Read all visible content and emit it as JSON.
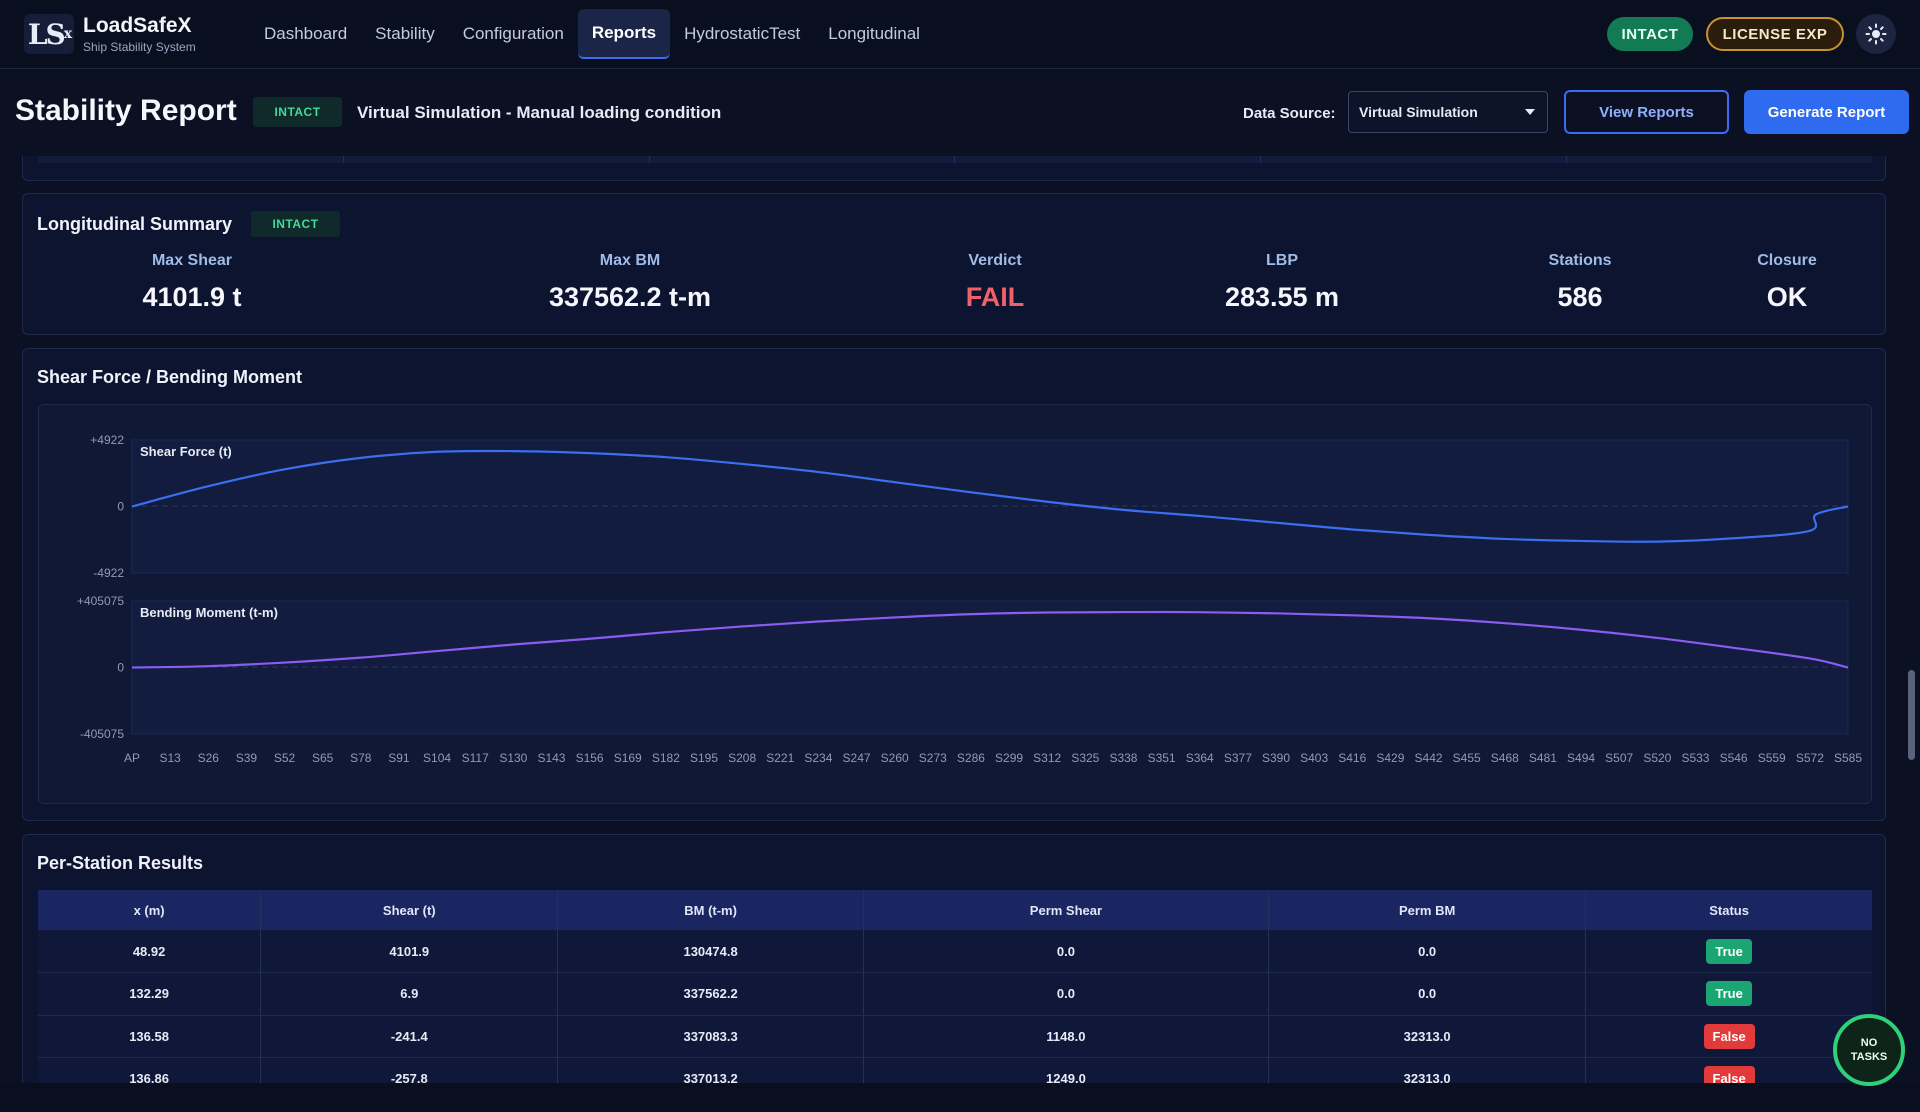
{
  "app": {
    "logo_text": "LS",
    "logo_sub": "x",
    "name": "LoadSafeX",
    "subtitle": "Ship Stability System"
  },
  "nav": [
    "Dashboard",
    "Stability",
    "Configuration",
    "Reports",
    "HydrostaticTest",
    "Longitudinal"
  ],
  "nav_active": "Reports",
  "top_status": {
    "intact": "INTACT",
    "license": "LICENSE EXP",
    "theme_icon": "sun-icon"
  },
  "header": {
    "title": "Stability Report",
    "badge": "INTACT",
    "description": "Virtual Simulation - Manual loading condition",
    "data_source_label": "Data Source:",
    "data_source_value": "Virtual Simulation",
    "view_reports": "View Reports",
    "generate_report": "Generate Report"
  },
  "summary": {
    "title": "Longitudinal Summary",
    "badge": "INTACT",
    "metrics": [
      {
        "label": "Max Shear",
        "value": "4101.9 t"
      },
      {
        "label": "Max BM",
        "value": "337562.2 t-m"
      },
      {
        "label": "Verdict",
        "value": "FAIL",
        "status": "fail"
      },
      {
        "label": "LBP",
        "value": "283.55 m"
      },
      {
        "label": "Stations",
        "value": "586"
      },
      {
        "label": "Closure",
        "value": "OK"
      }
    ]
  },
  "chart_section_title": "Shear Force / Bending Moment",
  "chart_data": [
    {
      "type": "line",
      "title": "Shear Force (t)",
      "ylim": [
        -4922,
        4922
      ],
      "ytick_labels": [
        "+4922",
        "0",
        "-4922"
      ],
      "color": "#3b6ff0",
      "x_station_index": [
        0,
        26,
        52,
        78,
        104,
        130,
        156,
        182,
        208,
        234,
        260,
        286,
        312,
        338,
        364,
        390,
        416,
        442,
        468,
        494,
        520,
        546,
        572,
        574,
        585
      ],
      "y": [
        0,
        1500,
        2750,
        3600,
        4050,
        4100,
        3950,
        3650,
        3150,
        2550,
        1800,
        1050,
        350,
        -250,
        -700,
        -1200,
        -1700,
        -2100,
        -2400,
        -2550,
        -2600,
        -2350,
        -1800,
        -600,
        0
      ]
    },
    {
      "type": "line",
      "title": "Bending Moment (t-m)",
      "ylim": [
        -405075,
        405075
      ],
      "ytick_labels": [
        "+405075",
        "0",
        "-405075"
      ],
      "color": "#8a5cf0",
      "x_station_index": [
        0,
        26,
        52,
        78,
        104,
        130,
        156,
        182,
        208,
        234,
        260,
        286,
        312,
        338,
        364,
        390,
        416,
        442,
        468,
        494,
        520,
        546,
        572,
        585
      ],
      "y": [
        0,
        8000,
        30000,
        60000,
        100000,
        140000,
        175000,
        215000,
        250000,
        280000,
        305000,
        325000,
        335000,
        337562,
        337000,
        330000,
        318000,
        300000,
        270000,
        230000,
        180000,
        120000,
        55000,
        0
      ]
    }
  ],
  "x_tick_labels": [
    "AP",
    "S13",
    "S26",
    "S39",
    "S52",
    "S65",
    "S78",
    "S91",
    "S104",
    "S117",
    "S130",
    "S143",
    "S156",
    "S169",
    "S182",
    "S195",
    "S208",
    "S221",
    "S234",
    "S247",
    "S260",
    "S273",
    "S286",
    "S299",
    "S312",
    "S325",
    "S338",
    "S351",
    "S364",
    "S377",
    "S390",
    "S403",
    "S416",
    "S429",
    "S442",
    "S455",
    "S468",
    "S481",
    "S494",
    "S507",
    "S520",
    "S533",
    "S546",
    "S559",
    "S572",
    "S585"
  ],
  "results": {
    "title": "Per-Station Results",
    "columns": [
      "x (m)",
      "Shear (t)",
      "BM (t-m)",
      "Perm Shear",
      "Perm BM",
      "Status"
    ],
    "rows": [
      [
        "48.92",
        "4101.9",
        "130474.8",
        "0.0",
        "0.0",
        "True"
      ],
      [
        "132.29",
        "6.9",
        "337562.2",
        "0.0",
        "0.0",
        "True"
      ],
      [
        "136.58",
        "-241.4",
        "337083.3",
        "1148.0",
        "32313.0",
        "False"
      ],
      [
        "136.86",
        "-257.8",
        "337013.2",
        "1249.0",
        "32313.0",
        "False"
      ]
    ]
  },
  "tasks_badge": {
    "line1": "NO",
    "line2": "TASKS"
  },
  "colors": {
    "accent": "#2f6bf0",
    "success": "#1aa572",
    "danger": "#e23a3a",
    "shear": "#3b6ff0",
    "bm": "#8a5cf0"
  }
}
